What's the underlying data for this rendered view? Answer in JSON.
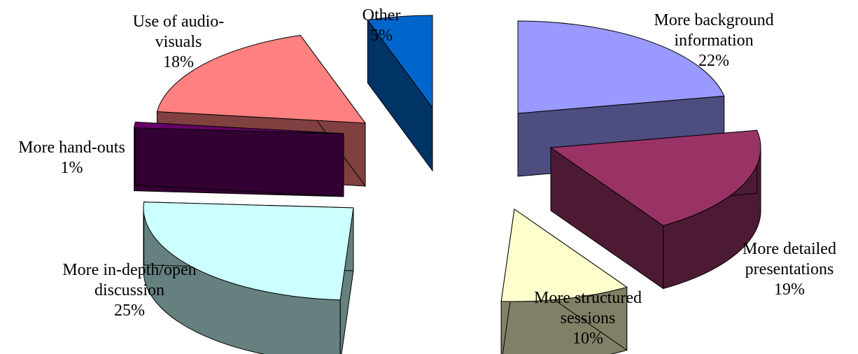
{
  "chart_data": {
    "type": "pie",
    "title": "",
    "style": "3d-exploded",
    "slices": [
      {
        "label_lines": [
          "More background",
          "information"
        ],
        "percent": "22%",
        "value": 22,
        "top_color": "#9999FF",
        "side_color": "#4D4D80"
      },
      {
        "label_lines": [
          "More detailed",
          "presentations"
        ],
        "percent": "19%",
        "value": 19,
        "top_color": "#993366",
        "side_color": "#4D1A33"
      },
      {
        "label_lines": [
          "More structured",
          "sessions"
        ],
        "percent": "10%",
        "value": 10,
        "top_color": "#FFFFCC",
        "side_color": "#808066"
      },
      {
        "label_lines": [
          "More in-depth/open",
          "discussion"
        ],
        "percent": "25%",
        "value": 25,
        "top_color": "#CCFFFF",
        "side_color": "#668080"
      },
      {
        "label_lines": [
          "More hand-outs"
        ],
        "percent": "1%",
        "value": 1,
        "top_color": "#660066",
        "side_color": "#330033"
      },
      {
        "label_lines": [
          "Use of audio-",
          "visuals"
        ],
        "percent": "18%",
        "value": 18,
        "top_color": "#FF8080",
        "side_color": "#804040"
      },
      {
        "label_lines": [
          "Other"
        ],
        "percent": "5%",
        "value": 5,
        "top_color": "#0066CC",
        "side_color": "#003366"
      }
    ]
  }
}
